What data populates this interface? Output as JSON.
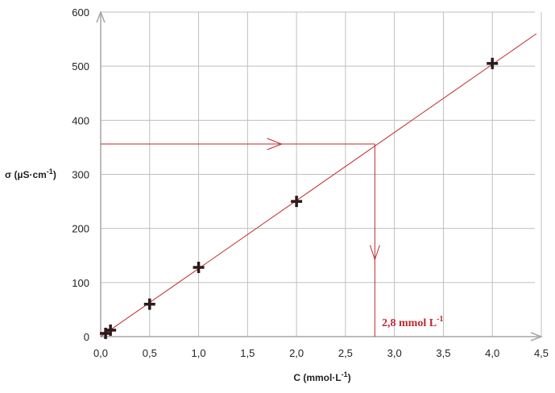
{
  "chart_data": {
    "type": "scatter",
    "xlabel": "C (mmol·L",
    "xlabel_sup": "-1",
    "xlabel_end": ")",
    "ylabel": "σ (µS·cm",
    "ylabel_sup": "-1",
    "ylabel_end": ")",
    "xlim": [
      0,
      4.5
    ],
    "ylim": [
      0,
      600
    ],
    "x_ticks": [
      0,
      0.5,
      1.0,
      1.5,
      2.0,
      2.5,
      3.0,
      3.5,
      4.0,
      4.5
    ],
    "x_tick_labels": [
      "0,0",
      "0,5",
      "1,0",
      "1,5",
      "2,0",
      "2,5",
      "3,0",
      "3,5",
      "4,0",
      "4,5"
    ],
    "y_ticks": [
      0,
      100,
      200,
      300,
      400,
      500,
      600
    ],
    "y_tick_labels": [
      "0",
      "100",
      "200",
      "300",
      "400",
      "500",
      "600"
    ],
    "grid": true,
    "points": [
      {
        "x": 0.05,
        "y": 6
      },
      {
        "x": 0.1,
        "y": 12
      },
      {
        "x": 0.5,
        "y": 60
      },
      {
        "x": 1.0,
        "y": 128
      },
      {
        "x": 2.0,
        "y": 250
      },
      {
        "x": 4.0,
        "y": 505
      }
    ],
    "fit_line": {
      "x0": 0,
      "y0": 0,
      "x1": 4.45,
      "y1": 560
    },
    "reading": {
      "y": 356,
      "x": 2.8
    },
    "annotation": {
      "text": "2,8 mmol L",
      "sup": "-1"
    }
  }
}
